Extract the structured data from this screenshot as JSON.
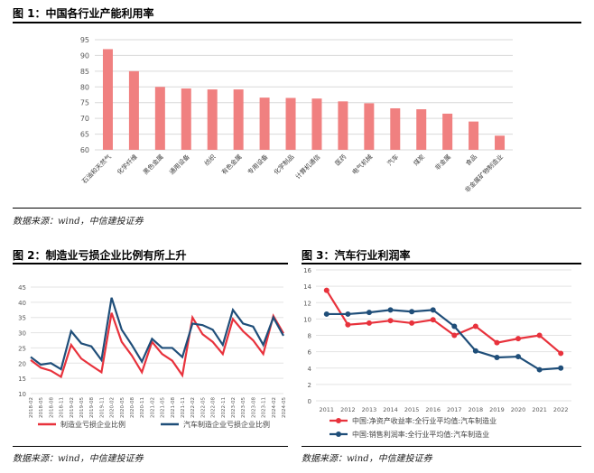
{
  "chart1": {
    "title": "图 1：中国各行业产能利用率",
    "source": "数据来源：wind，中信建投证券",
    "chart_data": {
      "type": "bar",
      "categories": [
        "石油和天然气",
        "化学纤维",
        "黑色金属",
        "通用设备",
        "纺织",
        "有色金属",
        "专用设备",
        "化学制品",
        "计算机通信",
        "医药",
        "电气机械",
        "汽车",
        "煤炭",
        "非金属",
        "食品",
        "非金属矿物制造业"
      ],
      "values": [
        92,
        85,
        80,
        79.5,
        79.2,
        79.2,
        76.6,
        76.5,
        76.3,
        75.4,
        74.8,
        73.2,
        72.9,
        71.5,
        69,
        64.5
      ],
      "ylim": [
        60,
        95
      ],
      "yticks": [
        60,
        65,
        70,
        75,
        80,
        85,
        90,
        95
      ],
      "color": "#f08080"
    }
  },
  "chart2": {
    "title": "图 2：制造业亏损企业比例有所上升",
    "source": "数据来源：wind，中信建投证券",
    "chart_data": {
      "type": "line",
      "x": [
        "2018-02",
        "2018-05",
        "2018-08",
        "2018-11",
        "2019-02",
        "2019-05",
        "2019-08",
        "2019-11",
        "2020-02",
        "2020-05",
        "2020-08",
        "2020-11",
        "2021-02",
        "2021-05",
        "2021-08",
        "2021-11",
        "2022-02",
        "2022-05",
        "2022-08",
        "2022-11",
        "2023-02",
        "2023-05",
        "2023-08",
        "2023-11",
        "2024-02",
        "2024-05"
      ],
      "series": [
        {
          "name": "制造业亏损企业比例",
          "color": "#e8323c",
          "values": [
            21,
            18.5,
            17.5,
            15.5,
            26,
            21.5,
            19.2,
            17,
            36.5,
            27,
            22.5,
            17,
            27,
            23,
            20.8,
            16,
            35,
            29.5,
            27,
            23,
            34.5,
            30.5,
            27.5,
            23,
            35.5,
            29.8
          ]
        },
        {
          "name": "汽车制造企业亏损企业比例",
          "color": "#1f4e79",
          "values": [
            22,
            19.5,
            20,
            18,
            30.5,
            26.5,
            25.5,
            21,
            41.5,
            31,
            26,
            20.5,
            28,
            25,
            25,
            22,
            33,
            32.5,
            31,
            26,
            37.5,
            33,
            32,
            26,
            35,
            29
          ]
        }
      ],
      "ylim": [
        10,
        45
      ],
      "yticks": [
        10,
        15,
        20,
        25,
        30,
        35,
        40,
        45
      ]
    }
  },
  "chart3": {
    "title": "图 3：汽车行业利润率",
    "source": "数据来源：wind，中信建投证券",
    "chart_data": {
      "type": "line",
      "x": [
        "2011",
        "2012",
        "2013",
        "2014",
        "2015",
        "2016",
        "2017",
        "2018",
        "2019",
        "2020",
        "2021",
        "2022"
      ],
      "series": [
        {
          "name": "中国:净资产收益率:全行业平均值:汽车制造业",
          "color": "#e8323c",
          "values": [
            13.5,
            9.3,
            9.5,
            9.8,
            9.5,
            9.9,
            8.0,
            9.1,
            7.1,
            7.6,
            8.0,
            5.8
          ]
        },
        {
          "name": "中国:销售利润率:全行业平均值:汽车制造业",
          "color": "#1f4e79",
          "values": [
            10.6,
            10.6,
            10.8,
            11.1,
            10.9,
            11.1,
            9.1,
            6.1,
            5.3,
            5.4,
            3.8,
            4.0
          ]
        }
      ],
      "ylim": [
        0,
        16
      ],
      "yticks": [
        0,
        2,
        4,
        6,
        8,
        10,
        12,
        14,
        16
      ]
    }
  }
}
